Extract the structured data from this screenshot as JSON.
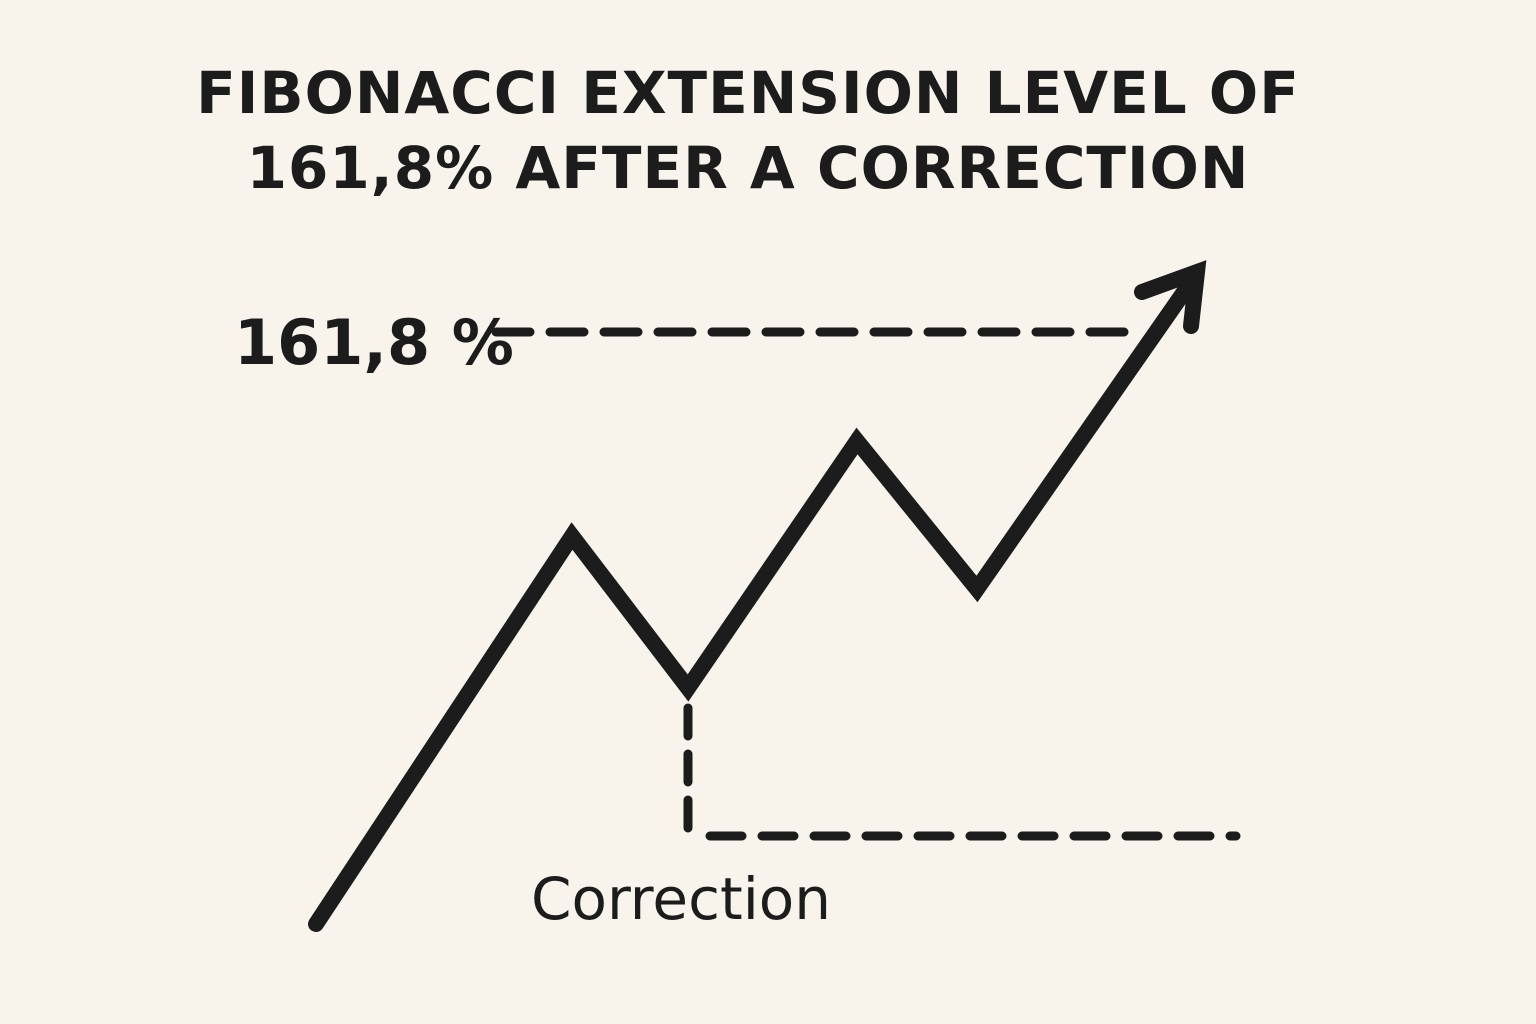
{
  "background_color": "#f8f4ec",
  "ink_color": "#1c1c1c",
  "title": {
    "line1": "FIBONACCI EXTENSION LEVEL OF",
    "line2": "161,8% AFTER A CORRECTION"
  },
  "extension_level_label": "161,8 %",
  "correction_label": "Correction",
  "icons": {
    "trend_arrowhead": "arrowhead-icon"
  }
}
